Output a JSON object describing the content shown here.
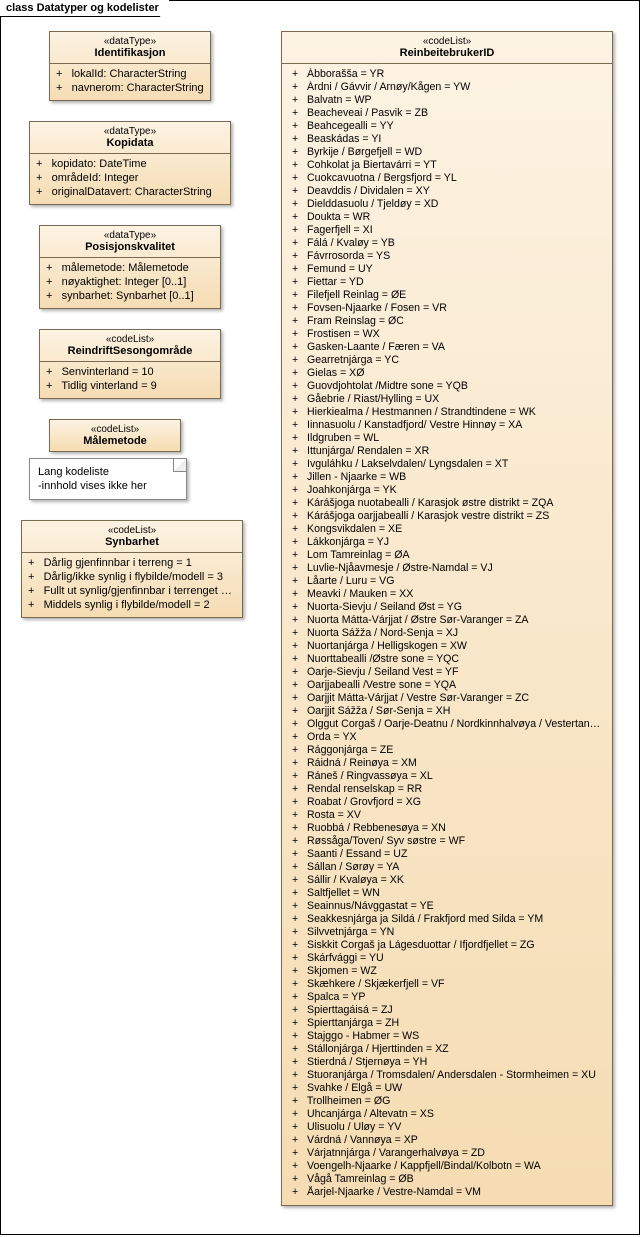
{
  "frame": {
    "title": "class Datatyper og kodelister"
  },
  "identifikasjon": {
    "stereo": "«dataType»",
    "name": "Identifikasjon",
    "attrs": [
      "lokalId: CharacterString",
      "navnerom: CharacterString"
    ]
  },
  "kopidata": {
    "stereo": "«dataType»",
    "name": "Kopidata",
    "attrs": [
      "kopidato: DateTime",
      "områdeId: Integer",
      "originalDatavert: CharacterString"
    ]
  },
  "posisjonskvalitet": {
    "stereo": "«dataType»",
    "name": "Posisjonskvalitet",
    "attrs": [
      "målemetode: Målemetode",
      "nøyaktighet: Integer [0..1]",
      "synbarhet: Synbarhet [0..1]"
    ]
  },
  "sesong": {
    "stereo": "«codeList»",
    "name": "ReindriftSesongområde",
    "attrs": [
      "Senvinterland = 10",
      "Tidlig vinterland = 9"
    ]
  },
  "malemetode": {
    "stereo": "«codeList»",
    "name": "Målemetode"
  },
  "note": {
    "line1": "Lang kodeliste",
    "line2": "-innhold vises ikke her"
  },
  "synbarhet": {
    "stereo": "«codeList»",
    "name": "Synbarhet",
    "attrs": [
      "Dårlig gjenfinnbar i terreng = 1",
      "Dårlig/ikke synlig i flybilde/modell = 3",
      "Fullt ut synlig/gjenfinnbar i terrenget = 0",
      "Middels synlig i flybilde/modell = 2"
    ]
  },
  "reinbeite": {
    "stereo": "«codeList»",
    "name": "ReinbeitebrukerID",
    "attrs": [
      "Ábborašša = YR",
      "Árdni / Gávvir / Arnøy/Kågen = YW",
      "Balvatn = WP",
      "Beacheveai / Pasvik = ZB",
      "Beahcegealli = YY",
      "Beaskádas = YI",
      "Byrkije / Børgefjell = WD",
      "Cohkolat ja Biertavárri = YT",
      "Cuokcavuotna / Bergsfjord = YL",
      "Deavddis / Dividalen = XY",
      "Dielddasuolu / Tjeldøy = XD",
      "Doukta = WR",
      "Fagerfjell = XI",
      "Fálá / Kvaløy = YB",
      "Fávrrosorda = YS",
      "Femund = UY",
      "Fiettar = YD",
      "Filefjell Reinlag = ØE",
      "Fovsen-Njaarke / Fosen = VR",
      "Fram Reinslag = ØC",
      "Frostisen = WX",
      "Gasken-Laante / Færen = VA",
      "Gearretnjárga = YC",
      "Gielas = XØ",
      "Guovdjohtolat /Midtre sone = YQB",
      "Gåebrie / Riast/Hylling = UX",
      "Hierkiealma / Hestmannen / Strandtindene = WK",
      "Iinnasuolu / Kanstadfjord/ Vestre Hinnøy = XA",
      "Ildgruben = WL",
      "Ittunjárga/ Rendalen = XR",
      "Ivguláhku / Lakselvdalen/ Lyngsdalen = XT",
      "Jillen - Njaarke  = WB",
      "Joahkonjárga = YK",
      "Kárášjoga nuotabealli / Karasjok østre distrikt = ZQA",
      "Kárášjoga oarjjabealli / Karasjok vestre distrikt = ZS",
      "Kongsvikdalen = XE",
      "Lákkonjárga = YJ",
      "Lom Tamreinlag = ØA",
      "Luvlie-Njåavmesje / Østre-Namdal = VJ",
      "Låarte / Luru = VG",
      "Meavki / Mauken = XX",
      "Nuorta-Sievju / Seiland Øst = YG",
      "Nuorta Mátta-Várjjat / Østre Sør-Varanger = ZA",
      "Nuorta Sážža / Nord-Senja = XJ",
      "Nuortanjárga / Helligskogen = XW",
      "Nuorttabealli /Østre sone = YQC",
      "Oarje-Sievju / Seiland Vest = YF",
      "Oarjjabealli /Vestre sone = YQA",
      "Oarjjit Mátta-Várjjat / Vestre Sør-Varanger = ZC",
      "Oarjjit Sážža / Sør-Senja = XH",
      "Olggut Corgaš / Oarje-Deatnu / Nordkinnhalvøya / Vestertana = ZF",
      "Orda = YX",
      "Rággonjárga = ZE",
      "Ráidná / Reinøya = XM",
      "Ráneš / Ringvassøya = XL",
      "Rendal renselskap = RR",
      "Roabat / Grovfjord = XG",
      "Rosta = XV",
      "Ruobbá / Rebbenesøya = XN",
      "Røssåga/Toven/ Syv søstre = WF",
      "Saanti / Essand = UZ",
      "Sállan / Sørøy = YA",
      "Sállir / Kvaløya = XK",
      "Saltfjellet = WN",
      "Seainnus/Návggastat = YE",
      "Seakkesnjárga ja Sildá / Frakfjord med Silda = YM",
      "Silvvetnjárga = YN",
      "Siskkit Corgaš ja Lágesduottar / Ifjordfjellet = ZG",
      "Skárfvággi = YU",
      "Skjomen = WZ",
      "Skæhkere / Skjækerfjell = VF",
      "Spalca = YP",
      "Spierttagáisá = ZJ",
      "Spierttanjárga = ZH",
      "Stajggo - Habmer = WS",
      "Stállonjárga / Hjerttinden = XZ",
      "Stierdná / Stjernøya = YH",
      "Stuoranjárga / Tromsdalen/ Andersdalen - Stormheimen = XU",
      "Svahke / Elgå = UW",
      "Trollheimen = ØG",
      "Uhcanjárga / Altevatn = XS",
      "Ulisuolu / Uløy = YV",
      "Várdná / Vannøya = XP",
      "Várjatnnjárga / Varangerhalvøya = ZD",
      "Voengelh-Njaarke / Kappfjell/Bindal/Kolbotn = WA",
      "Vågå Tamreinlag = ØB",
      "Åarjel-Njaarke / Vestre-Namdal = VM"
    ]
  },
  "colors": {
    "box_fill_top": "#fdf3e3",
    "box_fill_bottom": "#f5dcb3",
    "box_border": "#7a6a4f",
    "frame_border": "#000000",
    "background": "#ffffff",
    "shadow": "rgba(0,0,0,0.3)"
  }
}
